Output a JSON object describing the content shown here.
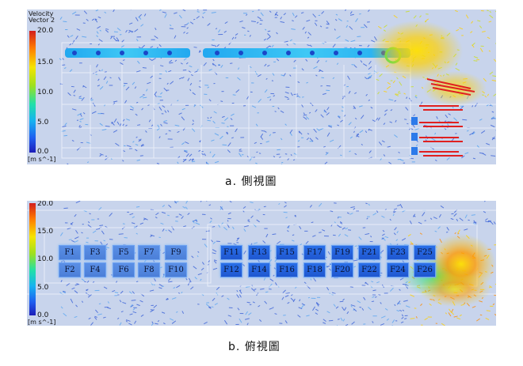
{
  "panel_a": {
    "legend_title_line1": "Velocity",
    "legend_title_line2": "Vector 2",
    "unit": "[m s^-1]",
    "ticks": [
      "20.0",
      "15.0",
      "10.0",
      "5.0",
      "0.0"
    ]
  },
  "panel_b": {
    "unit": "[m s^-1]",
    "ticks": [
      "20.0",
      "15.0",
      "10.0",
      "5.0",
      "0.0"
    ],
    "fans_top": [
      "F1",
      "F3",
      "F5",
      "F7",
      "F9",
      "F11",
      "F13",
      "F15",
      "F17",
      "F19",
      "F21",
      "F23",
      "F25"
    ],
    "fans_bottom": [
      "F2",
      "F4",
      "F6",
      "F8",
      "F10",
      "F12",
      "F14",
      "F16",
      "F18",
      "F20",
      "F22",
      "F24",
      "F26"
    ]
  },
  "captions": {
    "a": "a.  側視圖",
    "b": "b. 俯視圖"
  },
  "colors": {
    "background": "#c8d4ec",
    "fan_cell": "#2a6fe8",
    "max": "#d21e1e",
    "mid": "#f5e400",
    "min": "#1c1cb8"
  }
}
